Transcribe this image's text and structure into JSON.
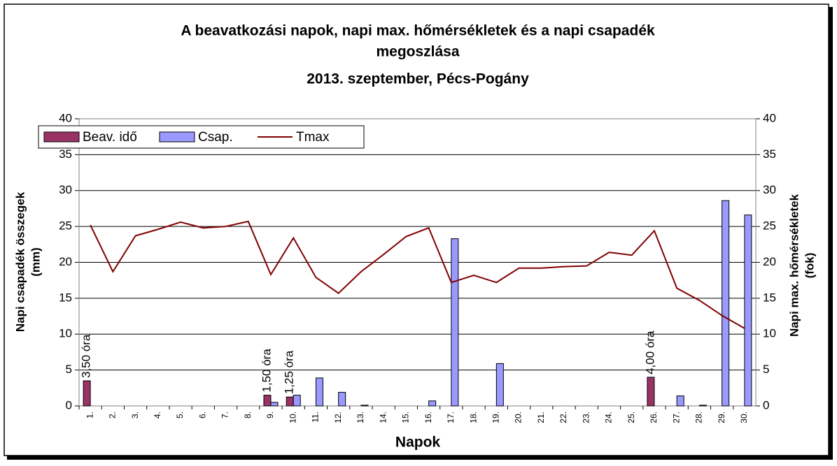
{
  "chart_data": {
    "type": "bar_line",
    "title": [
      "A beavatkozási napok,  napi max. hőmérsékletek és a napi csapadék",
      "megoszlása",
      "2013. szeptember, Pécs-Pogány"
    ],
    "xlabel": "Napok",
    "ylabel": [
      "Napi csapadék összegek",
      "(mm)"
    ],
    "y2label": [
      "Napi max. hőmérsékletek",
      "(fok)"
    ],
    "categories": [
      "1.",
      "2.",
      "3.",
      "4.",
      "5.",
      "6.",
      "7.",
      "8.",
      "9.",
      "10.",
      "11.",
      "12.",
      "13.",
      "14.",
      "15.",
      "16.",
      "17.",
      "18.",
      "19.",
      "20.",
      "21.",
      "22.",
      "23.",
      "24.",
      "25.",
      "26.",
      "27.",
      "28.",
      "29.",
      "30."
    ],
    "series": [
      {
        "name": "Beav. idő",
        "type": "bar",
        "color": "#993366",
        "values": [
          3.5,
          0,
          0,
          0,
          0,
          0,
          0,
          0,
          1.5,
          1.25,
          0,
          0,
          0,
          0,
          0,
          0,
          0,
          0,
          0,
          0,
          0,
          0,
          0,
          0,
          0,
          4,
          0,
          0,
          0,
          0
        ],
        "value_labels": [
          "3,50 óra",
          null,
          null,
          null,
          null,
          null,
          null,
          null,
          "1,50 óra",
          "1,25 óra",
          null,
          null,
          null,
          null,
          null,
          null,
          null,
          null,
          null,
          null,
          null,
          null,
          null,
          null,
          null,
          "4,00 óra",
          null,
          null,
          null,
          null
        ]
      },
      {
        "name": "Csap.",
        "type": "bar",
        "color": "#9999ff",
        "values": [
          0,
          0,
          0,
          0,
          0,
          0,
          0,
          0,
          0.5,
          1.5,
          3.9,
          1.9,
          0.1,
          0,
          0,
          0.7,
          23.3,
          0,
          5.9,
          0,
          0,
          0,
          0,
          0,
          0,
          0,
          1.4,
          0.1,
          28.6,
          26.6
        ]
      },
      {
        "name": "Tmax",
        "type": "line",
        "axis": "y2",
        "color": "#800000",
        "values": [
          25.2,
          18.7,
          23.7,
          24.6,
          25.6,
          24.8,
          25.0,
          25.7,
          18.3,
          23.4,
          17.9,
          15.7,
          18.7,
          21.1,
          23.6,
          24.8,
          17.2,
          18.2,
          17.2,
          19.2,
          19.2,
          19.4,
          19.5,
          21.4,
          21.0,
          24.4,
          16.4,
          14.7,
          12.6,
          10.8
        ]
      }
    ],
    "ylim": [
      0,
      40
    ],
    "yticks": [
      0,
      5,
      10,
      15,
      20,
      25,
      30,
      35,
      40
    ],
    "y2lim": [
      0,
      40
    ],
    "y2ticks": [
      0,
      5,
      10,
      15,
      20,
      25,
      30,
      35,
      40
    ],
    "grid": true,
    "legend": "upper left"
  }
}
